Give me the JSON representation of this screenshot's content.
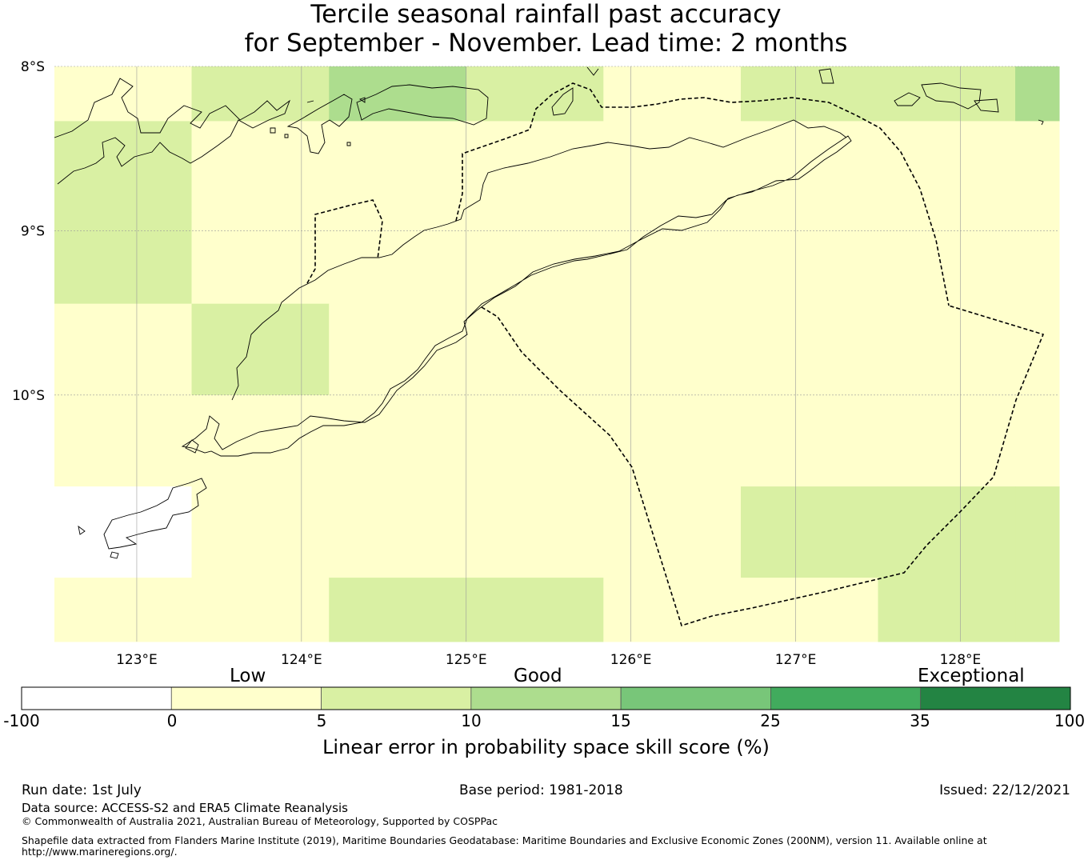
{
  "title": {
    "line1": "Tercile seasonal rainfall past accuracy",
    "line2": "for September - November. Lead time: 2 months"
  },
  "map": {
    "lon_range": [
      122.5,
      128.6
    ],
    "lat_range": [
      -11.5,
      -8.0
    ],
    "lat_labels": [
      {
        "value": -8,
        "label": "8°S"
      },
      {
        "value": -9,
        "label": "9°S"
      },
      {
        "value": -10,
        "label": "10°S"
      }
    ],
    "lon_labels": [
      {
        "value": 123,
        "label": "123°E"
      },
      {
        "value": 124,
        "label": "124°E"
      },
      {
        "value": 125,
        "label": "125°E"
      },
      {
        "value": 126,
        "label": "126°E"
      },
      {
        "value": 127,
        "label": "127°E"
      },
      {
        "value": 128,
        "label": "128°E"
      }
    ],
    "grid_columns_lon": [
      122.5,
      123.333,
      124.167,
      125.0,
      125.833,
      126.667,
      127.5,
      128.333,
      128.6
    ],
    "grid_rows_lat": [
      -8.0,
      -8.333,
      -8.889,
      -9.444,
      -10.0,
      -10.556,
      -11.111,
      -11.5
    ],
    "skill_grid": [
      [
        2,
        5,
        12,
        7,
        0,
        7,
        7,
        12
      ],
      [
        7,
        2,
        2,
        2,
        0,
        2,
        2,
        2
      ],
      [
        7,
        0,
        0,
        0,
        0,
        0,
        2,
        0
      ],
      [
        2,
        7,
        0,
        0,
        0,
        0,
        0,
        0
      ],
      [
        2,
        2,
        2,
        0,
        0,
        2,
        2,
        2
      ],
      [
        -5,
        2,
        2,
        2,
        2,
        7,
        7,
        7
      ],
      [
        2,
        2,
        7,
        7,
        2,
        2,
        7,
        7
      ]
    ],
    "colors": {
      "coastline": "#000000",
      "boundary": "#000000",
      "gridline": "#9a9a9a"
    }
  },
  "colorbar": {
    "categories": [
      {
        "label": "Low",
        "position": "left"
      },
      {
        "label": "Good",
        "position": "center"
      },
      {
        "label": "Exceptional",
        "position": "right"
      }
    ],
    "ticks": [
      "-100",
      "0",
      "5",
      "10",
      "15",
      "25",
      "35",
      "100"
    ],
    "colors": [
      "#ffffff",
      "#ffffcc",
      "#d9f0a3",
      "#addd8e",
      "#78c679",
      "#41ab5d",
      "#238443"
    ],
    "label": "Linear error in probability space skill score (%)"
  },
  "footer": {
    "run_date": "Run date: 1st July",
    "base_period": "Base period: 1981-2018",
    "issued": "Issued: 22/12/2021",
    "data_source": "Data source: ACCESS-S2 and ERA5 Climate Reanalysis",
    "copyright": "© Commonwealth of Australia 2021, Australian Bureau of Meteorology, Supported by COSPPac",
    "shapefile_line1": "Shapefile data extracted from Flanders Marine Institute (2019), Maritime Boundaries Geodatabase: Maritime Boundaries and Exclusive Economic Zones (200NM), version 11. Available online at",
    "shapefile_line2": "http://www.marineregions.org/."
  }
}
